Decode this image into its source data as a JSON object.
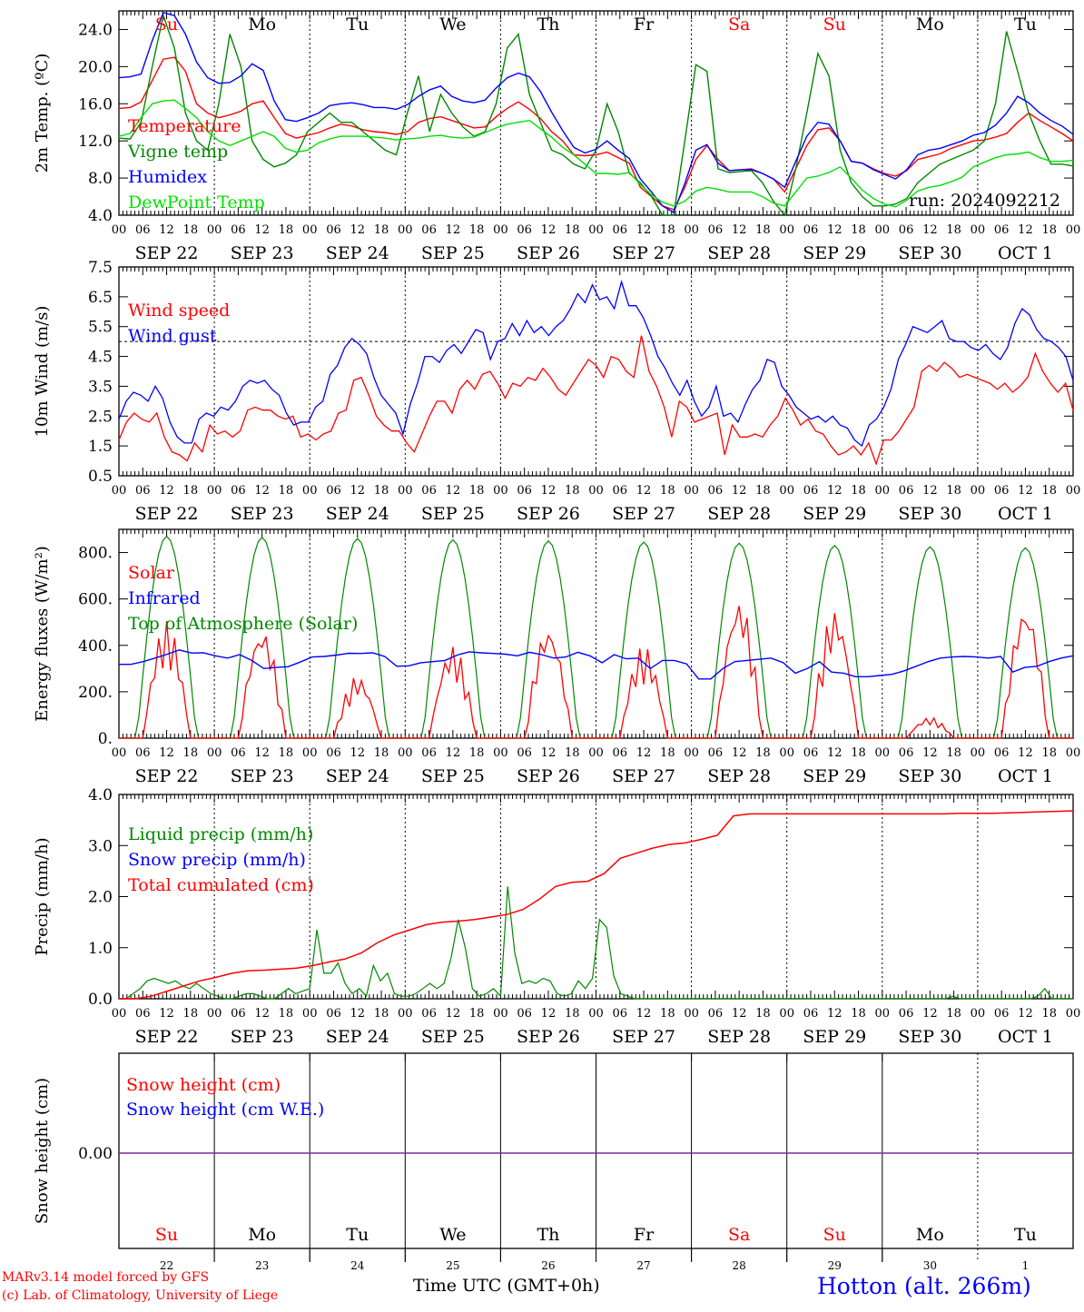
{
  "chart_data": [
    {
      "type": "line",
      "ylabel": "2m Temp. (ºC)",
      "ylim": [
        4,
        26
      ],
      "yticks": [
        "4.0",
        "8.0",
        "12.0",
        "16.0",
        "20.0",
        "24.0"
      ],
      "annotation": "run: 2024092212",
      "day_labels": [
        "Su",
        "Mo",
        "Tu",
        "We",
        "Th",
        "Fr",
        "Sa",
        "Su",
        "Mo",
        "Tu"
      ],
      "weekend": [
        true,
        false,
        false,
        false,
        false,
        false,
        true,
        true,
        false,
        false
      ],
      "series": [
        {
          "name": "Temperature",
          "color": "#ff0000",
          "values": [
            15.5,
            15.6,
            16.2,
            18.5,
            20.8,
            21,
            19.5,
            16,
            15,
            14.5,
            14.8,
            15.2,
            16,
            16.3,
            14.5,
            12.8,
            12.3,
            12.6,
            12.9,
            13.4,
            13.8,
            13.6,
            13.2,
            13,
            12.9,
            12.7,
            13,
            14,
            14.4,
            14.6,
            14.2,
            13.8,
            13.4,
            13.5,
            14.6,
            15.5,
            16.2,
            15.4,
            14.4,
            13,
            12,
            10.5,
            10.4,
            10.5,
            10.8,
            10.2,
            9.6,
            7,
            6,
            5,
            4.6,
            7,
            10,
            11.5,
            10,
            8.8,
            8.9,
            9,
            8.5,
            7.9,
            6.5,
            9,
            11.5,
            13.2,
            13.4,
            12,
            9.8,
            9.6,
            9,
            8.5,
            8.2,
            8.8,
            10,
            10.3,
            10.6,
            11.2,
            11.6,
            12,
            12.1,
            12.4,
            12.8,
            14,
            15,
            14.2,
            13.5,
            12.8,
            12
          ]
        },
        {
          "name": "Vigne temp",
          "color": "#008800",
          "values": [
            12.3,
            12.2,
            14,
            20,
            25.5,
            22,
            15,
            12,
            11,
            16,
            23.5,
            20,
            12,
            10,
            9.2,
            9.6,
            10.5,
            13,
            14,
            15,
            14,
            14,
            13,
            12,
            11,
            10.5,
            15,
            19,
            13,
            17,
            15,
            13.5,
            12.5,
            13,
            16,
            22,
            23.5,
            17,
            14,
            11,
            10.5,
            9.5,
            9,
            11,
            16,
            13,
            8.5,
            7.5,
            6,
            3.5,
            4,
            12,
            20.2,
            19.5,
            9,
            8.6,
            8.7,
            8.8,
            7.5,
            5.5,
            4,
            9,
            15,
            21.4,
            19,
            11,
            7.5,
            6,
            5,
            5,
            5.2,
            5.8,
            7.5,
            8.5,
            9.5,
            10,
            10.5,
            11,
            12,
            16,
            23.8,
            19.5,
            15,
            12,
            9.5,
            9.5,
            9.3
          ]
        },
        {
          "name": "Humidex",
          "color": "#0000ff",
          "values": [
            18.8,
            18.9,
            19.2,
            22.8,
            25.8,
            25.5,
            23.5,
            20.5,
            18.8,
            18.2,
            18.3,
            19,
            20.3,
            19.6,
            16.3,
            14.3,
            14.1,
            14.5,
            15,
            15.8,
            16,
            16.1,
            15.9,
            15.6,
            15.6,
            15.4,
            15.9,
            16.8,
            17.5,
            17.9,
            16.8,
            16.3,
            16.1,
            16.4,
            17.7,
            18.8,
            19.3,
            18.9,
            17.3,
            15.1,
            13.1,
            11.3,
            10.7,
            11.1,
            12,
            11,
            10.1,
            7.9,
            6.5,
            5,
            4.3,
            7.4,
            11,
            11.6,
            9.6,
            8.8,
            8.9,
            8.9,
            8.5,
            7.9,
            7,
            9.8,
            12.5,
            14,
            13.8,
            12,
            9.8,
            9.6,
            8.9,
            8.4,
            7.9,
            8.9,
            10.5,
            11,
            11.2,
            11.6,
            12,
            12.6,
            12.9,
            13.7,
            15,
            16.8,
            16.1,
            15,
            14.2,
            13.6,
            12.7
          ]
        },
        {
          "name": "DewPoint Temp",
          "color": "#00e000",
          "values": [
            12.5,
            12.8,
            14.5,
            16,
            16.3,
            16.4,
            15.5,
            14.5,
            13,
            12,
            11.5,
            12,
            12.5,
            13,
            12.5,
            11.2,
            10.8,
            11,
            11.8,
            12.2,
            12.5,
            12.5,
            12.5,
            12.4,
            12.3,
            12.1,
            12.2,
            12.3,
            12.5,
            12.6,
            12.4,
            12.3,
            12.4,
            12.9,
            13.4,
            13.8,
            14,
            14.2,
            13.3,
            12.4,
            11.3,
            10.5,
            9.5,
            8.5,
            8.5,
            8.4,
            8.6,
            7.3,
            6.2,
            5.4,
            5,
            5.5,
            6.6,
            7,
            6.8,
            6.5,
            6.5,
            6.5,
            6,
            5.3,
            5,
            6.5,
            8,
            8.2,
            8.6,
            9.2,
            8,
            6.7,
            5.8,
            5.2,
            4.9,
            5.6,
            6.6,
            7,
            7.2,
            7.6,
            8.1,
            9.2,
            9.7,
            10.2,
            10.5,
            10.6,
            10.8,
            10.2,
            9.8,
            9.8,
            9.9
          ]
        }
      ]
    },
    {
      "type": "line",
      "ylabel": "10m Wind (m/s)",
      "ylim": [
        0.5,
        7.5
      ],
      "yticks": [
        "0.5",
        "1.5",
        "2.5",
        "3.5",
        "4.5",
        "5.5",
        "6.5",
        "7.5"
      ],
      "reference_line": 5,
      "series": [
        {
          "name": "Wind speed",
          "color": "#ff0000",
          "values": [
            1.7,
            2.3,
            2.6,
            2.4,
            2.3,
            2.6,
            1.8,
            1.3,
            1.2,
            1.0,
            1.6,
            1.3,
            2.2,
            1.9,
            2,
            1.8,
            2,
            2.7,
            2.8,
            2.7,
            2.7,
            2.5,
            2.4,
            2.5,
            1.8,
            1.9,
            1.7,
            1.9,
            2,
            2.6,
            2.7,
            3.7,
            3.8,
            3.2,
            2.5,
            2.2,
            2,
            2,
            1.6,
            1.3,
            1.9,
            2.5,
            3,
            3,
            2.6,
            3.4,
            3.7,
            3.4,
            3.9,
            4,
            3.6,
            3.1,
            3.6,
            3.5,
            3.8,
            3.7,
            4.1,
            3.8,
            3.4,
            3.2,
            3.6,
            4,
            4.4,
            4.2,
            3.8,
            4.5,
            4.4,
            4,
            3.8,
            5.2,
            4,
            3.5,
            2.8,
            1.8,
            3,
            2.8,
            2.3,
            2.4,
            2.5,
            2.6,
            1.2,
            2.2,
            1.8,
            1.8,
            1.9,
            1.8,
            2.2,
            2.5,
            3.1,
            2.7,
            2.2,
            2.4,
            2.0,
            1.9,
            1.5,
            1.2,
            1.3,
            1.5,
            1.2,
            1.6,
            0.9,
            1.7,
            1.7,
            2.0,
            2.4,
            2.8,
            4.0,
            4.2,
            4.0,
            4.3,
            4.1,
            3.8,
            3.9,
            3.8,
            3.7,
            3.6,
            3.4,
            3.6,
            3.3,
            3.5,
            3.8,
            4.6,
            4.0,
            3.6,
            3.3,
            3.6,
            2.7
          ]
        },
        {
          "name": "Wind gust",
          "color": "#0000ff",
          "values": [
            2.4,
            3,
            3.3,
            3.2,
            3,
            3.5,
            3.1,
            2.3,
            1.8,
            1.6,
            1.6,
            2.4,
            2.6,
            2.5,
            2.8,
            2.7,
            3,
            3.5,
            3.7,
            3.6,
            3.7,
            3.4,
            3.2,
            2.6,
            2.2,
            2.3,
            2.3,
            2.8,
            3,
            3.9,
            4.2,
            4.8,
            5.1,
            4.9,
            4.6,
            3.8,
            3.2,
            2.9,
            2.6,
            1.9,
            2.9,
            3.6,
            4.5,
            4.5,
            4.3,
            4.7,
            4.9,
            4.6,
            5,
            5.4,
            5.3,
            4.4,
            5,
            5.1,
            5.6,
            5.2,
            5.7,
            5.3,
            5.5,
            5.2,
            5.5,
            5.7,
            6.1,
            6.6,
            6.3,
            6.9,
            6.4,
            6.5,
            6.1,
            7.0,
            6.2,
            6.2,
            5.8,
            5.2,
            4.5,
            4.1,
            3.6,
            3.2,
            3.7,
            3,
            2.5,
            2.8,
            3.5,
            2.5,
            2.6,
            2.3,
            2.9,
            3.4,
            3.7,
            4.4,
            4.3,
            3.5,
            3.2,
            2.8,
            2.6,
            2.4,
            2.5,
            2.3,
            2.5,
            2.2,
            2.1,
            1.7,
            1.5,
            2.2,
            2.4,
            2.8,
            3.4,
            4.4,
            4.9,
            5.5,
            5.4,
            5.3,
            5.5,
            5.7,
            5.1,
            5,
            5,
            4.8,
            4.7,
            4.9,
            4.6,
            4.4,
            4.8,
            5.6,
            6.1,
            5.9,
            5.4,
            5.1,
            5,
            4.8,
            4.5,
            3.7
          ]
        }
      ]
    },
    {
      "type": "line",
      "ylabel": "Energy fluxes (W/m²)",
      "ylim": [
        0,
        900
      ],
      "yticks": [
        "0.",
        "200.",
        "400.",
        "600.",
        "800."
      ],
      "series": [
        {
          "name": "Solar",
          "color": "#ff0000",
          "solar_peaks": [
            505,
            480,
            270,
            400,
            490,
            400,
            610,
            560,
            90,
            580
          ]
        },
        {
          "name": "Infrared",
          "color": "#0000ff",
          "values": [
            318,
            318,
            330,
            345,
            362,
            380,
            367,
            368,
            355,
            345,
            360,
            335,
            300,
            305,
            308,
            328,
            350,
            352,
            358,
            366,
            365,
            368,
            352,
            310,
            312,
            325,
            330,
            335,
            358,
            372,
            368,
            365,
            362,
            355,
            370,
            360,
            345,
            350,
            370,
            355,
            325,
            360,
            342,
            345,
            300,
            335,
            335,
            320,
            255,
            255,
            300,
            330,
            335,
            340,
            345,
            325,
            280,
            300,
            330,
            285,
            280,
            265,
            265,
            270,
            275,
            290,
            310,
            330,
            345,
            350,
            352,
            350,
            345,
            352,
            285,
            305,
            310,
            330,
            345,
            355
          ]
        },
        {
          "name": "Top of Atmosphere (Solar)",
          "color": "#008800",
          "toa_peaks": [
            870,
            865,
            860,
            855,
            850,
            845,
            840,
            830,
            825,
            820
          ]
        }
      ]
    },
    {
      "type": "line",
      "ylabel": "Precip (mm/h)",
      "ylim": [
        0,
        4
      ],
      "yticks": [
        "0.0",
        "1.0",
        "2.0",
        "3.0",
        "4.0"
      ],
      "series": [
        {
          "name": "Liquid precip (mm/h)",
          "color": "#008800",
          "values": [
            0,
            0,
            0.1,
            0.2,
            0.35,
            0.4,
            0.35,
            0.3,
            0.35,
            0.25,
            0.2,
            0.3,
            0.2,
            0.1,
            0.05,
            0,
            0,
            0.05,
            0.1,
            0.1,
            0.05,
            0,
            0,
            0.1,
            0.2,
            0.1,
            0.15,
            0.2,
            1.35,
            0.5,
            0.5,
            0.7,
            0.3,
            0.1,
            0.2,
            0.05,
            0.65,
            0.35,
            0.5,
            0.1,
            0.05,
            0.05,
            0.1,
            0.2,
            0.3,
            0.2,
            0.3,
            0.8,
            1.55,
            1.0,
            0.2,
            0.05,
            0.1,
            0.2,
            0.05,
            2.2,
            0.9,
            0.3,
            0.35,
            0.3,
            0.4,
            0.35,
            0.1,
            0.05,
            0.1,
            0.35,
            0.2,
            0.4,
            1.55,
            1.4,
            0.45,
            0.1,
            0.05,
            0,
            0,
            0,
            0,
            0,
            0,
            0,
            0,
            0,
            0,
            0,
            0,
            0,
            0,
            0,
            0,
            0,
            0,
            0,
            0,
            0,
            0,
            0,
            0,
            0,
            0,
            0,
            0,
            0,
            0,
            0,
            0,
            0,
            0,
            0,
            0,
            0,
            0,
            0,
            0,
            0,
            0,
            0,
            0,
            0,
            0.05,
            0,
            0,
            0,
            0,
            0,
            0,
            0,
            0,
            0,
            0,
            0,
            0.05,
            0.2,
            0,
            0,
            0,
            0
          ]
        },
        {
          "name": "Snow precip (mm/h)",
          "color": "#0000ff",
          "values": [
            0,
            0
          ]
        },
        {
          "name": "Total cumulated (cm)",
          "color": "#ff0000",
          "values": [
            0,
            0,
            0.05,
            0.15,
            0.25,
            0.35,
            0.42,
            0.5,
            0.55,
            0.56,
            0.58,
            0.6,
            0.65,
            0.72,
            0.78,
            0.9,
            1.1,
            1.25,
            1.35,
            1.45,
            1.5,
            1.52,
            1.55,
            1.6,
            1.65,
            1.75,
            1.95,
            2.2,
            2.28,
            2.3,
            2.45,
            2.75,
            2.85,
            2.95,
            3.02,
            3.05,
            3.12,
            3.2,
            3.58,
            3.62,
            3.62,
            3.62,
            3.62,
            3.62,
            3.62,
            3.62,
            3.62,
            3.62,
            3.62,
            3.62,
            3.62,
            3.62,
            3.63,
            3.63,
            3.63,
            3.64,
            3.65,
            3.66,
            3.67,
            3.68
          ]
        }
      ]
    },
    {
      "type": "line",
      "ylabel": "Snow height (cm)",
      "yticks": [
        "0.00"
      ],
      "day_labels": [
        "Su",
        "Mo",
        "Tu",
        "We",
        "Th",
        "Fr",
        "Sa",
        "Su",
        "Mo",
        "Tu"
      ],
      "day_numbers": [
        "22",
        "23",
        "24",
        "25",
        "26",
        "27",
        "28",
        "29",
        "30",
        "1"
      ],
      "weekend": [
        true,
        false,
        false,
        false,
        false,
        false,
        true,
        true,
        false,
        false
      ],
      "series": [
        {
          "name": "Snow height (cm)",
          "color": "#ff0000",
          "values": [
            0,
            0
          ]
        },
        {
          "name": "Snow height (cm W.E.)",
          "color": "#0000ff",
          "values": [
            0,
            0
          ]
        }
      ]
    }
  ],
  "x_axis": {
    "hour_ticks": [
      "00",
      "06",
      "12",
      "18"
    ],
    "dates": [
      "SEP 22",
      "SEP 23",
      "SEP 24",
      "SEP 25",
      "SEP 26",
      "SEP 27",
      "SEP 28",
      "SEP 29",
      "SEP 30",
      "OCT  1"
    ]
  },
  "footer": {
    "model_line": "MARv3.14 model forced by GFS",
    "copyright_line": "(c) Lab. of Climatology, University of Liege",
    "xlabel": "Time UTC (GMT+0h)",
    "station": "Hotton (alt. 266m)"
  }
}
